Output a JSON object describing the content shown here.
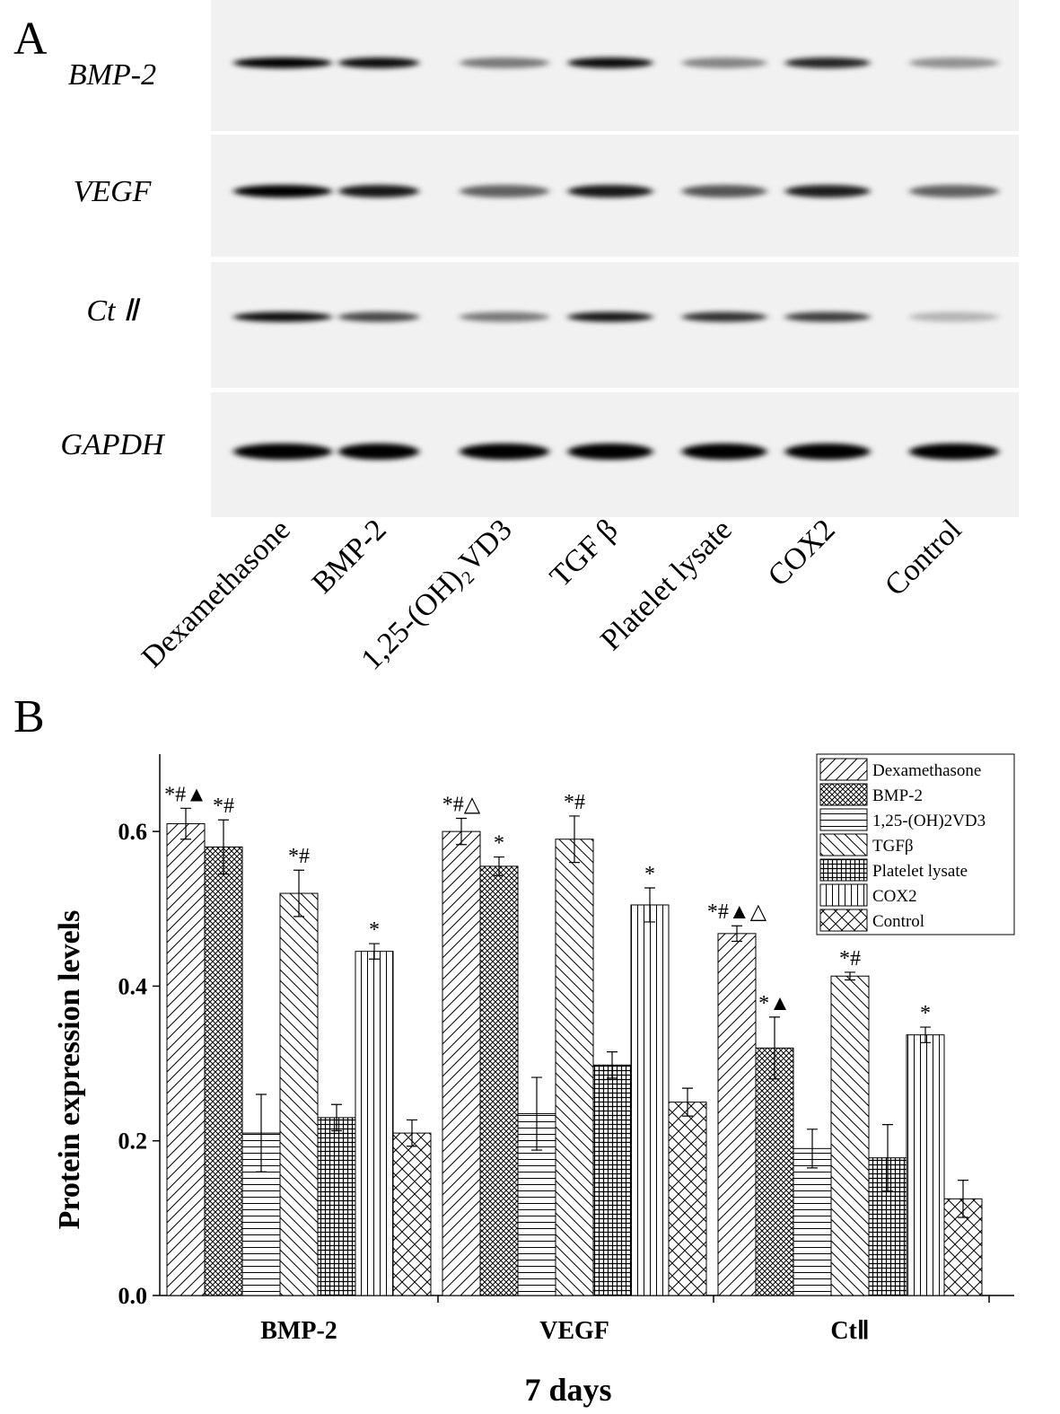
{
  "panel_a": {
    "label": "A",
    "rows": [
      "BMP-2",
      "VEGF",
      "Ct Ⅱ",
      "GAPDH"
    ],
    "lanes": [
      "Dexamethasone",
      "BMP-2",
      "1,25-(OH)₂VD3",
      "TGF β",
      "Platelet lysate",
      "COX2",
      "Control"
    ]
  },
  "chart_data": {
    "type": "bar",
    "panel_label": "B",
    "xlabel": "7 days",
    "ylabel": "Protein expression levels",
    "categories": [
      "BMP-2",
      "VEGF",
      "CtⅡ"
    ],
    "ylim": [
      0,
      0.7
    ],
    "yticks": [
      {
        "value": 0,
        "label": "0.0"
      },
      {
        "value": 0.2,
        "label": "0.2"
      },
      {
        "value": 0.4,
        "label": "0.4"
      },
      {
        "value": 0.6,
        "label": "0.6"
      }
    ],
    "legend": "top-right",
    "series": [
      {
        "name": "Dexamethasone",
        "color": "#000",
        "pattern": "diagonal",
        "values": [
          0.61,
          0.6,
          0.468
        ],
        "errors": [
          0.02,
          0.017,
          0.01
        ],
        "annotations": [
          "*#▲",
          "*#△",
          "*#▲△"
        ]
      },
      {
        "name": "BMP-2",
        "color": "#000",
        "pattern": "crosshatch",
        "values": [
          0.58,
          0.555,
          0.32
        ],
        "errors": [
          0.035,
          0.012,
          0.04
        ],
        "annotations": [
          "*#",
          "*",
          "*▲"
        ]
      },
      {
        "name": "1,25-(OH)2VD3",
        "color": "#000",
        "pattern": "horizontal",
        "values": [
          0.21,
          0.235,
          0.19
        ],
        "errors": [
          0.05,
          0.047,
          0.025
        ],
        "annotations": [
          null,
          null,
          null
        ]
      },
      {
        "name": "TGFβ",
        "color": "#000",
        "pattern": "backdiagonal",
        "values": [
          0.52,
          0.59,
          0.413
        ],
        "errors": [
          0.03,
          0.03,
          0.005
        ],
        "annotations": [
          "*#",
          "*#",
          "*#"
        ]
      },
      {
        "name": "Platelet lysate",
        "color": "#000",
        "pattern": "grid",
        "values": [
          0.23,
          0.298,
          0.178
        ],
        "errors": [
          0.017,
          0.017,
          0.043
        ],
        "annotations": [
          null,
          null,
          null
        ]
      },
      {
        "name": "COX2",
        "color": "#000",
        "pattern": "vertical",
        "values": [
          0.445,
          0.505,
          0.337
        ],
        "errors": [
          0.01,
          0.022,
          0.01
        ],
        "annotations": [
          "*",
          "*",
          "*"
        ]
      },
      {
        "name": "Control",
        "color": "#000",
        "pattern": "diagcross",
        "values": [
          0.21,
          0.25,
          0.125
        ],
        "errors": [
          0.017,
          0.018,
          0.024
        ],
        "annotations": [
          null,
          null,
          null
        ]
      }
    ]
  }
}
